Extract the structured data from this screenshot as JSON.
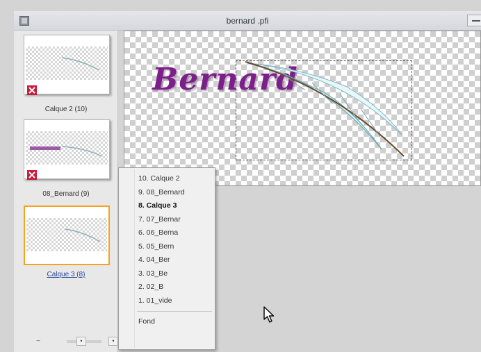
{
  "window": {
    "title": "bernard .pfi"
  },
  "layers": [
    {
      "label": "Calque 2 (10)",
      "selected": false
    },
    {
      "label": "08_Bernard (9)",
      "selected": false
    },
    {
      "label": "Calque 3 (8)",
      "selected": true
    }
  ],
  "canvas": {
    "text": "Bernard"
  },
  "context_menu": {
    "items": [
      {
        "label": "10. Calque 2",
        "bold": false
      },
      {
        "label": "9. 08_Bernard",
        "bold": false
      },
      {
        "label": "8. Calque 3",
        "bold": true
      },
      {
        "label": "7. 07_Bernar",
        "bold": false
      },
      {
        "label": "6. 06_Berna",
        "bold": false
      },
      {
        "label": "5. 05_Bern",
        "bold": false
      },
      {
        "label": "4. 04_Ber",
        "bold": false
      },
      {
        "label": "3. 03_Be",
        "bold": false
      },
      {
        "label": "2. 02_B",
        "bold": false
      },
      {
        "label": "1. 01_vide",
        "bold": false
      }
    ],
    "footer_item": "Fond"
  },
  "colors": {
    "selection_border": "#f6a21d",
    "text_purple": "#7d1f8a"
  }
}
